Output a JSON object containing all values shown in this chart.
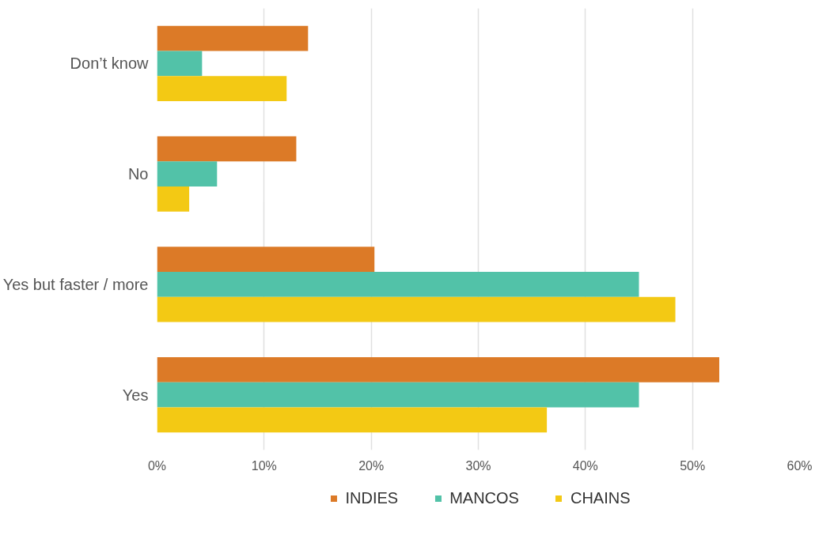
{
  "chart_data": {
    "type": "bar",
    "orientation": "horizontal",
    "categories": [
      "Don’t know",
      "No",
      "Yes but faster / more",
      "Yes"
    ],
    "series": [
      {
        "name": "INDIES",
        "color": "#dc7a27",
        "values": [
          14.1,
          13.0,
          20.3,
          52.5
        ]
      },
      {
        "name": "MANCOS",
        "color": "#52c2a8",
        "values": [
          4.2,
          5.6,
          45.0,
          45.0
        ]
      },
      {
        "name": "CHAINS",
        "color": "#f3c914",
        "values": [
          12.1,
          3.0,
          48.4,
          36.4
        ]
      }
    ],
    "xlim": [
      0,
      60
    ],
    "xticks": [
      {
        "value": 0,
        "label": "0%"
      },
      {
        "value": 10,
        "label": "10%"
      },
      {
        "value": 20,
        "label": "20%"
      },
      {
        "value": 30,
        "label": "30%"
      },
      {
        "value": 40,
        "label": "40%"
      },
      {
        "value": 50,
        "label": "50%"
      },
      {
        "value": 60,
        "label": "60%"
      }
    ],
    "grid": "x",
    "legend": "bottom"
  }
}
